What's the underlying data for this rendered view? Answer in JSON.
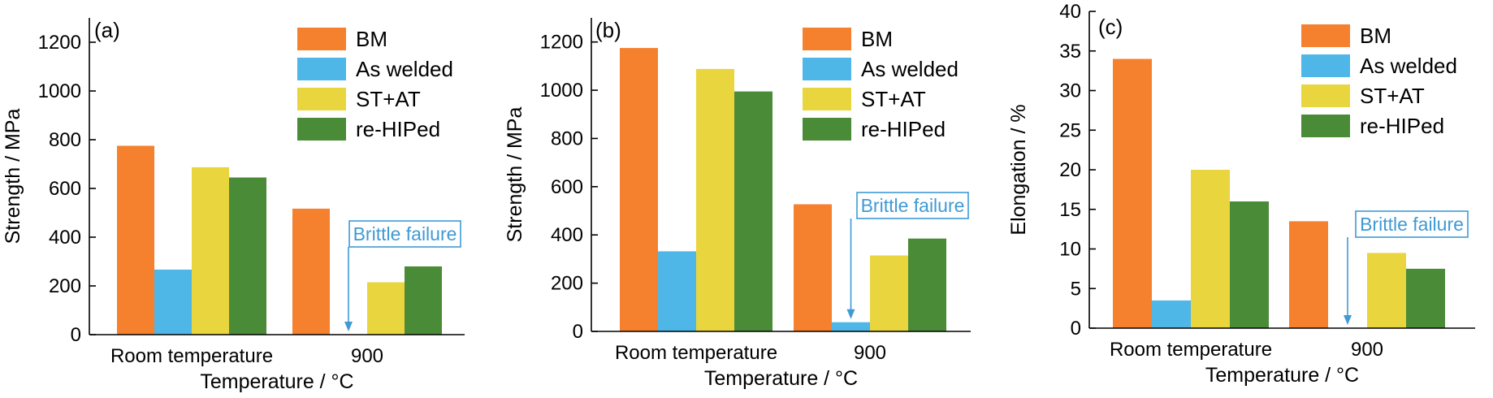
{
  "colors": {
    "BM": "#f5812e",
    "As welded": "#4fb6e8",
    "ST+AT": "#e9d53e",
    "re-HIPed": "#4a8b38",
    "annotation": "#3f9ad5",
    "axis": "#000000"
  },
  "chart_data": [
    {
      "type": "bar",
      "panel_label": "(a)",
      "title": "",
      "xlabel": "Temperature / °C",
      "ylabel": "Strength / MPa",
      "categories": [
        "Room temperature",
        "900"
      ],
      "ylim": [
        0,
        1300
      ],
      "yticks": [
        0,
        200,
        400,
        600,
        800,
        1000,
        1200
      ],
      "grid": false,
      "legend_position": "top-right",
      "series": [
        {
          "name": "BM",
          "values": [
            775,
            517
          ]
        },
        {
          "name": "As welded",
          "values": [
            267,
            0
          ]
        },
        {
          "name": "ST+AT",
          "values": [
            687,
            215
          ]
        },
        {
          "name": "re-HIPed",
          "values": [
            645,
            280
          ]
        }
      ],
      "annotation": {
        "text": "Brittle failure",
        "series": "As welded",
        "category": "900"
      }
    },
    {
      "type": "bar",
      "panel_label": "(b)",
      "title": "",
      "xlabel": "Temperature / °C",
      "ylabel": "Strength / MPa",
      "categories": [
        "Room temperature",
        "900"
      ],
      "ylim": [
        0,
        1300
      ],
      "yticks": [
        0,
        200,
        400,
        600,
        800,
        1000,
        1200
      ],
      "grid": false,
      "legend_position": "top-right",
      "series": [
        {
          "name": "BM",
          "values": [
            1175,
            527
          ]
        },
        {
          "name": "As welded",
          "values": [
            332,
            38
          ]
        },
        {
          "name": "ST+AT",
          "values": [
            1088,
            315
          ]
        },
        {
          "name": "re-HIPed",
          "values": [
            995,
            385
          ]
        }
      ],
      "annotation": {
        "text": "Brittle failure",
        "series": "As welded",
        "category": "900"
      }
    },
    {
      "type": "bar",
      "panel_label": "(c)",
      "title": "",
      "xlabel": "Temperature / °C",
      "ylabel": "Elongation / %",
      "categories": [
        "Room temperature",
        "900"
      ],
      "ylim": [
        0,
        40
      ],
      "yticks": [
        0,
        5,
        10,
        15,
        20,
        25,
        30,
        35,
        40
      ],
      "grid": false,
      "legend_position": "top-right",
      "series": [
        {
          "name": "BM",
          "values": [
            34.0,
            13.5
          ]
        },
        {
          "name": "As welded",
          "values": [
            3.5,
            0
          ]
        },
        {
          "name": "ST+AT",
          "values": [
            20.0,
            9.5
          ]
        },
        {
          "name": "re-HIPed",
          "values": [
            16.0,
            7.5
          ]
        }
      ],
      "annotation": {
        "text": "Brittle failure",
        "series": "As welded",
        "category": "900"
      }
    }
  ]
}
